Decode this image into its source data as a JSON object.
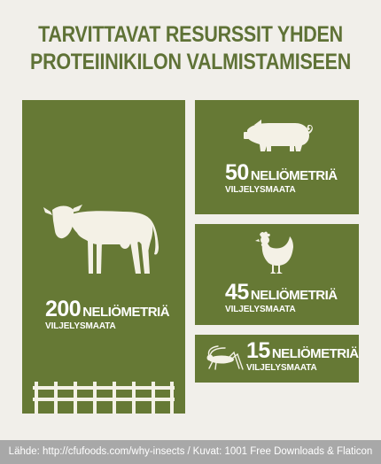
{
  "title": {
    "line1": "TARVITTAVAT RESURSSIT YHDEN",
    "line2": "PROTEIINIKILON VALMISTAMISEEN"
  },
  "panels": {
    "cow": {
      "number": "200",
      "unit": "NELIÖMETRIÄ",
      "sub": "VILJELYSMAATA",
      "icon": "cow-icon"
    },
    "pig": {
      "number": "50",
      "unit": "NELIÖMETRIÄ",
      "sub": "VILJELYSMAATA",
      "icon": "pig-icon"
    },
    "hen": {
      "number": "45",
      "unit": "NELIÖMETRIÄ",
      "sub": "VILJELYSMAATA",
      "icon": "hen-icon"
    },
    "cricket": {
      "number": "15",
      "unit": "NELIÖMETRIÄ",
      "sub": "VILJELYSMAATA",
      "icon": "cricket-icon"
    }
  },
  "footer": {
    "source": "Lähde: http://cfufoods.com/why-insects",
    "separator": "/",
    "credits": "Kuvat: 1001 Free Downloads & Flaticon"
  },
  "colors": {
    "panel": "#667935",
    "title": "#5f7236",
    "background": "#f1efea",
    "footer": "#a8a8a8",
    "text": "#ffffff"
  }
}
